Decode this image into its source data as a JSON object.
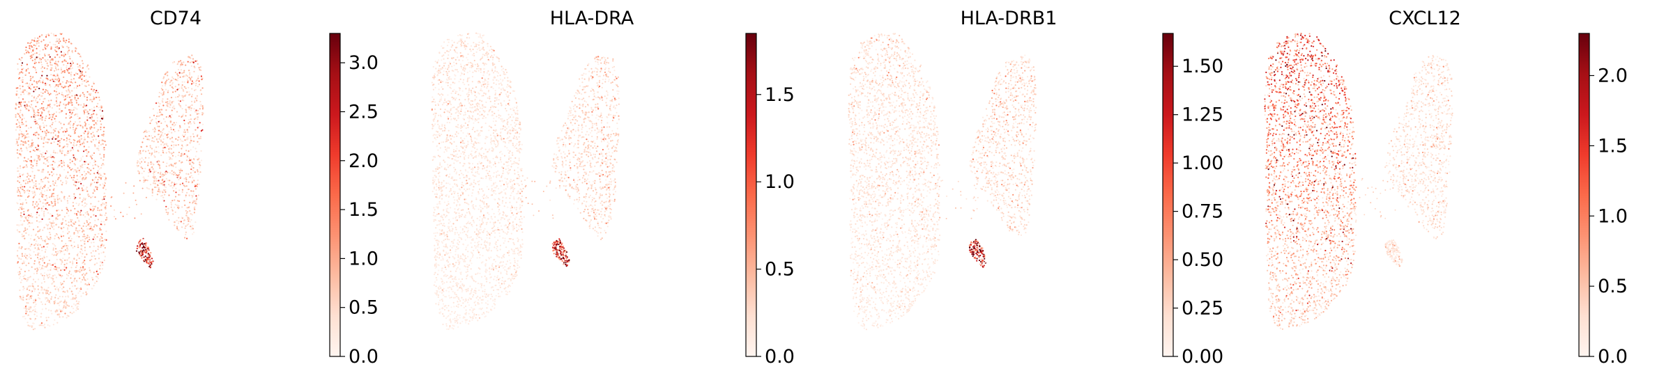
{
  "figure": {
    "colormap": "Reds",
    "colormap_stops": [
      "#fff5f0",
      "#fee0d2",
      "#fcbba1",
      "#fc9272",
      "#fb6a4a",
      "#ef3b2c",
      "#cb181d",
      "#a50f15",
      "#67000d"
    ]
  },
  "chart_data": [
    {
      "type": "scatter",
      "title": "CD74",
      "xlabel": "",
      "ylabel": "",
      "colorbar": {
        "range": [
          0,
          3.3
        ],
        "ticks": [
          0.0,
          0.5,
          1.0,
          1.5,
          2.0,
          2.5,
          3.0
        ],
        "tick_labels": [
          "0.0",
          "0.5",
          "1.0",
          "1.5",
          "2.0",
          "2.5",
          "3.0"
        ]
      },
      "expression_levels": {
        "left_cluster_top": 1.4,
        "left_cluster_bottom": 0.6,
        "right_cluster": 0.9,
        "small_cluster": 3.0
      }
    },
    {
      "type": "scatter",
      "title": "HLA-DRA",
      "xlabel": "",
      "ylabel": "",
      "colorbar": {
        "range": [
          0,
          1.85
        ],
        "ticks": [
          0.0,
          0.5,
          1.0,
          1.5
        ],
        "tick_labels": [
          "0.0",
          "0.5",
          "1.0",
          "1.5"
        ]
      },
      "expression_levels": {
        "left_cluster_top": 0.3,
        "left_cluster_bottom": 0.15,
        "right_cluster": 0.35,
        "small_cluster": 1.6
      }
    },
    {
      "type": "scatter",
      "title": "HLA-DRB1",
      "xlabel": "",
      "ylabel": "",
      "colorbar": {
        "range": [
          0,
          1.67
        ],
        "ticks": [
          0.0,
          0.25,
          0.5,
          0.75,
          1.0,
          1.25,
          1.5
        ],
        "tick_labels": [
          "0.00",
          "0.25",
          "0.50",
          "0.75",
          "1.00",
          "1.25",
          "1.50"
        ]
      },
      "expression_levels": {
        "left_cluster_top": 0.3,
        "left_cluster_bottom": 0.15,
        "right_cluster": 0.3,
        "small_cluster": 1.45
      }
    },
    {
      "type": "scatter",
      "title": "CXCL12",
      "xlabel": "",
      "ylabel": "",
      "colorbar": {
        "range": [
          0,
          2.3
        ],
        "ticks": [
          0.0,
          0.5,
          1.0,
          1.5,
          2.0
        ],
        "tick_labels": [
          "0.0",
          "0.5",
          "1.0",
          "1.5",
          "2.0"
        ]
      },
      "expression_levels": {
        "left_cluster_top": 1.6,
        "left_cluster_bottom": 0.5,
        "right_cluster": 0.35,
        "small_cluster": 0.3
      }
    }
  ]
}
